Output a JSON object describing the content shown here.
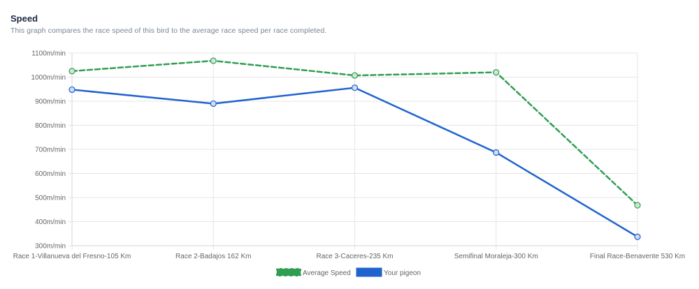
{
  "header": {
    "title": "Speed",
    "subtitle": "This graph compares the race speed of this bird to the average race speed per race completed."
  },
  "chart_data": {
    "type": "line",
    "title": "Speed",
    "categories": [
      "Race 1-Villanueva del Fresno-105 Km",
      "Race 2-Badajos 162 Km",
      "Race 3-Caceres-235 Km",
      "Semifinal Moraleja-300 Km",
      "Final Race-Benavente 530 Km"
    ],
    "y_ticks": [
      "300m/min",
      "400m/min",
      "500m/min",
      "600m/min",
      "700m/min",
      "800m/min",
      "900m/min",
      "1000m/min",
      "1100m/min"
    ],
    "ylim": [
      300,
      1100
    ],
    "grid": true,
    "legend_position": "bottom",
    "series": [
      {
        "name": "Average Speed",
        "values": [
          1025,
          1068,
          1007,
          1020,
          468
        ],
        "color": "#2e9e52",
        "dashed": true,
        "point_fill": "#cde7d2"
      },
      {
        "name": "Your pigeon",
        "values": [
          948,
          890,
          956,
          687,
          337
        ],
        "color": "#1f63cf",
        "dashed": false,
        "point_fill": "#cfdcf2"
      }
    ]
  }
}
